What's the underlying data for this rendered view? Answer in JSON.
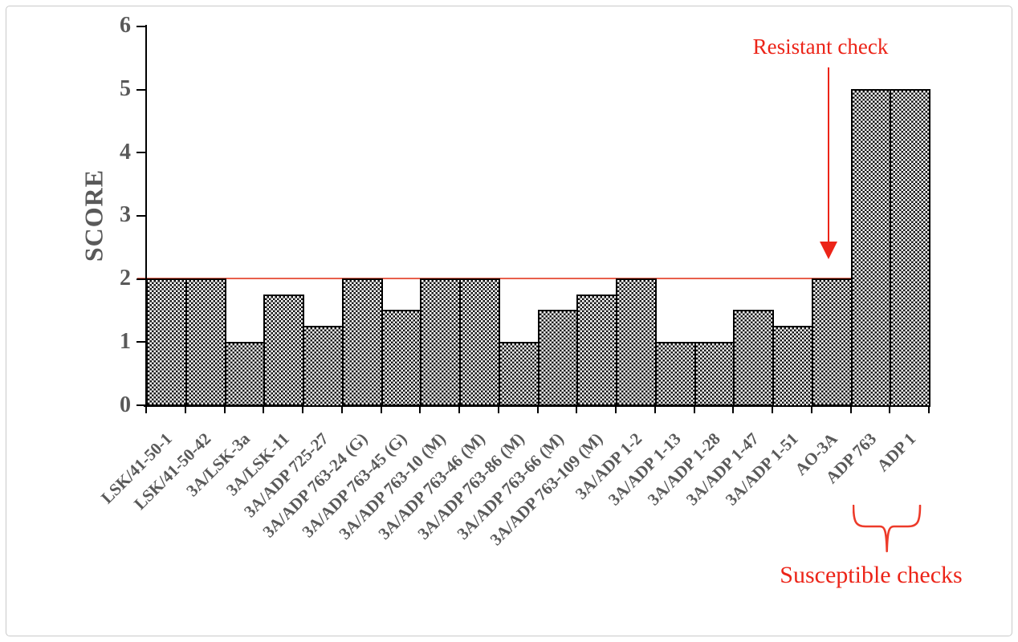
{
  "figure": {
    "border_color": "#c9c9c9",
    "background": "#ffffff"
  },
  "chart_data": {
    "type": "bar",
    "title": "",
    "xlabel": "",
    "ylabel": "SCORE",
    "ylim": [
      0,
      6
    ],
    "yticks": [
      0,
      1,
      2,
      3,
      4,
      5,
      6
    ],
    "grid": false,
    "legend": false,
    "categories": [
      "LSK/41-50-1",
      "LSK/41-50-42",
      "3A/LSK-3a",
      "3A/LSK-11",
      "3A/ADP 725-27",
      "3A/ADP 763-24 (G)",
      "3A/ADP 763-45 (G)",
      "3A/ADP 763-10 (M)",
      "3A/ADP 763-46 (M)",
      "3A/ADP 763-86 (M)",
      "3A/ADP 763-66 (M)",
      "3A/ADP 763-109 (M)",
      "3A/ADP 1-2",
      "3A/ADP 1-13",
      "3A/ADP 1-28",
      "3A/ADP 1-47",
      "3A/ADP 1-51",
      "AO-3A",
      "ADP 763",
      "ADP 1"
    ],
    "values": [
      2,
      2,
      1,
      1.75,
      1.25,
      2,
      1.5,
      2,
      2,
      1,
      1.5,
      1.75,
      2,
      1,
      1,
      1.5,
      1.25,
      2,
      5,
      5
    ],
    "threshold_line": {
      "y": 2,
      "color": "#E8604C"
    },
    "annotations": [
      {
        "type": "arrow-down",
        "text": "Resistant check",
        "color": "#EC2418",
        "target_category": "AO-3A"
      },
      {
        "type": "brace-below",
        "text": "Susceptible checks",
        "color": "#EC2418",
        "target_categories": [
          "ADP 763",
          "ADP 1"
        ]
      }
    ],
    "bar_style": {
      "fill_pattern": "checkerboard",
      "pattern_color": "#161616",
      "border_color": "#000000",
      "fill_background": "#ffffff"
    },
    "axis_text_color": "#595959",
    "axis_line_color": "#000000"
  }
}
